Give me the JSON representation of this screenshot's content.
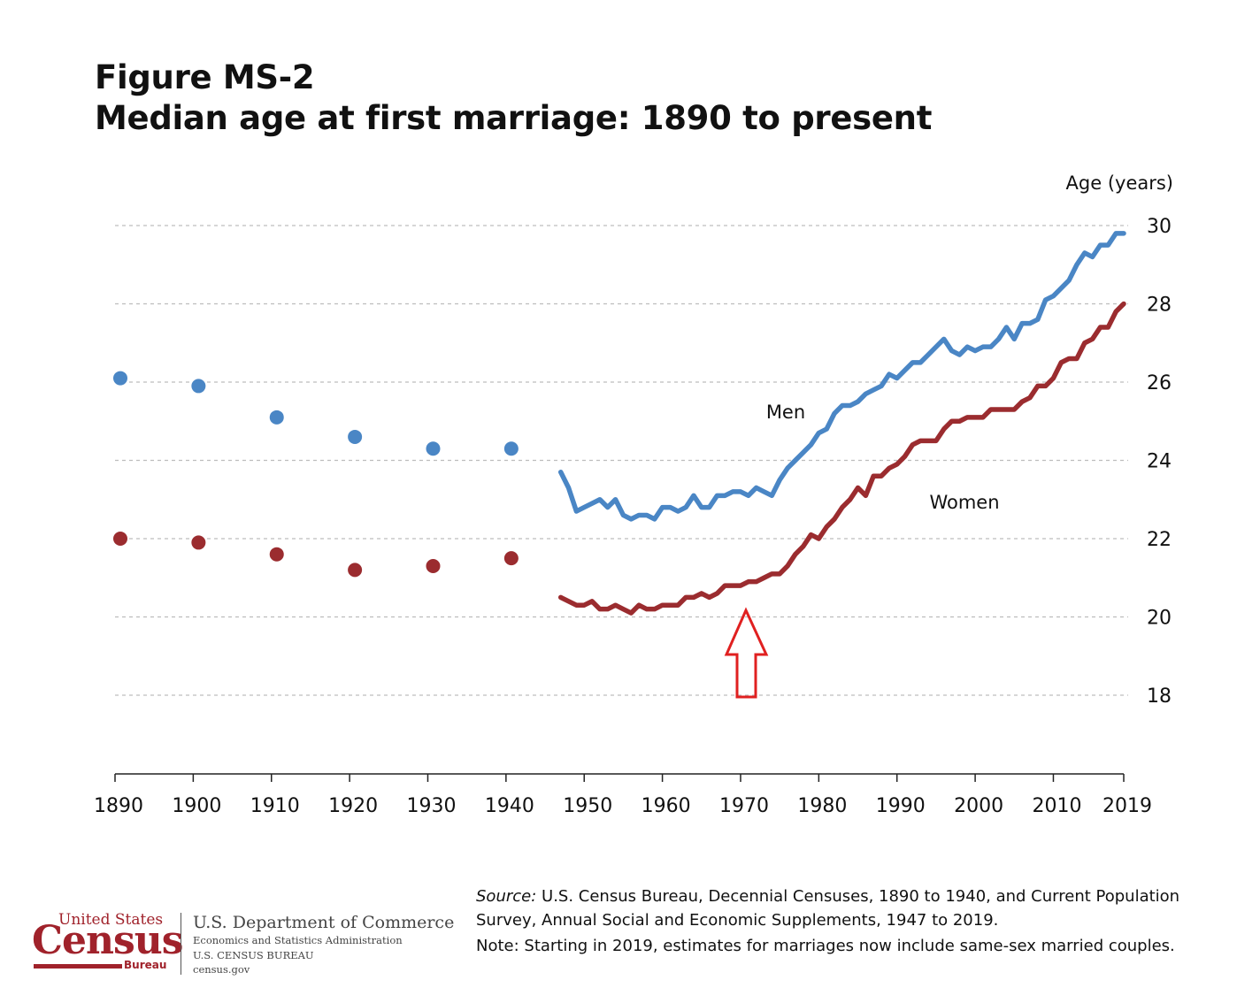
{
  "header": {
    "title_line1": "Figure MS-2",
    "title_line2": "Median age at first marriage: 1890 to present"
  },
  "chart_data": {
    "type": "line",
    "title": "Median age at first marriage: 1890 to present",
    "ylabel": "Age (years)",
    "xlabel": "",
    "ylim": [
      16,
      30
    ],
    "xlim": [
      1890,
      2019
    ],
    "y_ticks": [
      18,
      20,
      22,
      24,
      26,
      28,
      30
    ],
    "x_ticks": [
      1890,
      1900,
      1910,
      1920,
      1930,
      1940,
      1950,
      1960,
      1970,
      1980,
      1990,
      2000,
      2010,
      2019
    ],
    "grid": true,
    "colors": {
      "men": "#4a86c5",
      "women": "#9b2c2f",
      "arrow": "#e02020"
    },
    "series": [
      {
        "name": "Men",
        "census_points": [
          [
            1890,
            26.1
          ],
          [
            1900,
            25.9
          ],
          [
            1910,
            25.1
          ],
          [
            1920,
            24.6
          ],
          [
            1930,
            24.3
          ],
          [
            1940,
            24.3
          ]
        ],
        "line": [
          [
            1947,
            23.7
          ],
          [
            1948,
            23.3
          ],
          [
            1949,
            22.7
          ],
          [
            1950,
            22.8
          ],
          [
            1951,
            22.9
          ],
          [
            1952,
            23.0
          ],
          [
            1953,
            22.8
          ],
          [
            1954,
            23.0
          ],
          [
            1955,
            22.6
          ],
          [
            1956,
            22.5
          ],
          [
            1957,
            22.6
          ],
          [
            1958,
            22.6
          ],
          [
            1959,
            22.5
          ],
          [
            1960,
            22.8
          ],
          [
            1961,
            22.8
          ],
          [
            1962,
            22.7
          ],
          [
            1963,
            22.8
          ],
          [
            1964,
            23.1
          ],
          [
            1965,
            22.8
          ],
          [
            1966,
            22.8
          ],
          [
            1967,
            23.1
          ],
          [
            1968,
            23.1
          ],
          [
            1969,
            23.2
          ],
          [
            1970,
            23.2
          ],
          [
            1971,
            23.1
          ],
          [
            1972,
            23.3
          ],
          [
            1973,
            23.2
          ],
          [
            1974,
            23.1
          ],
          [
            1975,
            23.5
          ],
          [
            1976,
            23.8
          ],
          [
            1977,
            24.0
          ],
          [
            1978,
            24.2
          ],
          [
            1979,
            24.4
          ],
          [
            1980,
            24.7
          ],
          [
            1981,
            24.8
          ],
          [
            1982,
            25.2
          ],
          [
            1983,
            25.4
          ],
          [
            1984,
            25.4
          ],
          [
            1985,
            25.5
          ],
          [
            1986,
            25.7
          ],
          [
            1987,
            25.8
          ],
          [
            1988,
            25.9
          ],
          [
            1989,
            26.2
          ],
          [
            1990,
            26.1
          ],
          [
            1991,
            26.3
          ],
          [
            1992,
            26.5
          ],
          [
            1993,
            26.5
          ],
          [
            1994,
            26.7
          ],
          [
            1995,
            26.9
          ],
          [
            1996,
            27.1
          ],
          [
            1997,
            26.8
          ],
          [
            1998,
            26.7
          ],
          [
            1999,
            26.9
          ],
          [
            2000,
            26.8
          ],
          [
            2001,
            26.9
          ],
          [
            2002,
            26.9
          ],
          [
            2003,
            27.1
          ],
          [
            2004,
            27.4
          ],
          [
            2005,
            27.1
          ],
          [
            2006,
            27.5
          ],
          [
            2007,
            27.5
          ],
          [
            2008,
            27.6
          ],
          [
            2009,
            28.1
          ],
          [
            2010,
            28.2
          ],
          [
            2011,
            28.4
          ],
          [
            2012,
            28.6
          ],
          [
            2013,
            29.0
          ],
          [
            2014,
            29.3
          ],
          [
            2015,
            29.2
          ],
          [
            2016,
            29.5
          ],
          [
            2017,
            29.5
          ],
          [
            2018,
            29.8
          ],
          [
            2019,
            29.8
          ]
        ]
      },
      {
        "name": "Women",
        "census_points": [
          [
            1890,
            22.0
          ],
          [
            1900,
            21.9
          ],
          [
            1910,
            21.6
          ],
          [
            1920,
            21.2
          ],
          [
            1930,
            21.3
          ],
          [
            1940,
            21.5
          ]
        ],
        "line": [
          [
            1947,
            20.5
          ],
          [
            1948,
            20.4
          ],
          [
            1949,
            20.3
          ],
          [
            1950,
            20.3
          ],
          [
            1951,
            20.4
          ],
          [
            1952,
            20.2
          ],
          [
            1953,
            20.2
          ],
          [
            1954,
            20.3
          ],
          [
            1955,
            20.2
          ],
          [
            1956,
            20.1
          ],
          [
            1957,
            20.3
          ],
          [
            1958,
            20.2
          ],
          [
            1959,
            20.2
          ],
          [
            1960,
            20.3
          ],
          [
            1961,
            20.3
          ],
          [
            1962,
            20.3
          ],
          [
            1963,
            20.5
          ],
          [
            1964,
            20.5
          ],
          [
            1965,
            20.6
          ],
          [
            1966,
            20.5
          ],
          [
            1967,
            20.6
          ],
          [
            1968,
            20.8
          ],
          [
            1969,
            20.8
          ],
          [
            1970,
            20.8
          ],
          [
            1971,
            20.9
          ],
          [
            1972,
            20.9
          ],
          [
            1973,
            21.0
          ],
          [
            1974,
            21.1
          ],
          [
            1975,
            21.1
          ],
          [
            1976,
            21.3
          ],
          [
            1977,
            21.6
          ],
          [
            1978,
            21.8
          ],
          [
            1979,
            22.1
          ],
          [
            1980,
            22.0
          ],
          [
            1981,
            22.3
          ],
          [
            1982,
            22.5
          ],
          [
            1983,
            22.8
          ],
          [
            1984,
            23.0
          ],
          [
            1985,
            23.3
          ],
          [
            1986,
            23.1
          ],
          [
            1987,
            23.6
          ],
          [
            1988,
            23.6
          ],
          [
            1989,
            23.8
          ],
          [
            1990,
            23.9
          ],
          [
            1991,
            24.1
          ],
          [
            1992,
            24.4
          ],
          [
            1993,
            24.5
          ],
          [
            1994,
            24.5
          ],
          [
            1995,
            24.5
          ],
          [
            1996,
            24.8
          ],
          [
            1997,
            25.0
          ],
          [
            1998,
            25.0
          ],
          [
            1999,
            25.1
          ],
          [
            2000,
            25.1
          ],
          [
            2001,
            25.1
          ],
          [
            2002,
            25.3
          ],
          [
            2003,
            25.3
          ],
          [
            2004,
            25.3
          ],
          [
            2005,
            25.3
          ],
          [
            2006,
            25.5
          ],
          [
            2007,
            25.6
          ],
          [
            2008,
            25.9
          ],
          [
            2009,
            25.9
          ],
          [
            2010,
            26.1
          ],
          [
            2011,
            26.5
          ],
          [
            2012,
            26.6
          ],
          [
            2013,
            26.6
          ],
          [
            2014,
            27.0
          ],
          [
            2015,
            27.1
          ],
          [
            2016,
            27.4
          ],
          [
            2017,
            27.4
          ],
          [
            2018,
            27.8
          ],
          [
            2019,
            28.0
          ]
        ]
      }
    ],
    "annotations": {
      "men_label": "Men",
      "women_label": "Women"
    }
  },
  "footer": {
    "source_label": "Source:",
    "source_line1": " U.S. Census  Bureau, Decennial Censuses,  1890 to 1940, and Current Population",
    "source_line2": "Survey, Annual Social and Economic Supplements, 1947 to 2019.",
    "note": "Note: Starting in 2019, estimates for  marriages now include same-sex married couples."
  },
  "logo": {
    "united_states": "United States",
    "census": "Census",
    "bureau": "Bureau",
    "dept": "U.S. Department of Commerce",
    "sub1": "Economics and Statistics Administration",
    "sub2": "U.S. CENSUS BUREAU",
    "sub3": "census.gov"
  }
}
